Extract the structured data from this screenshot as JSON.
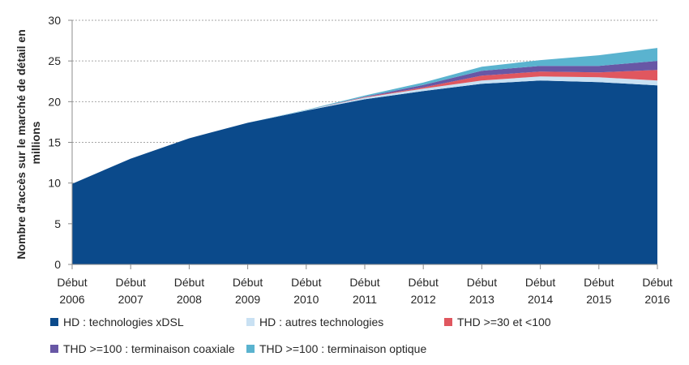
{
  "chart_data": {
    "type": "area",
    "stacked": true,
    "title": "",
    "xlabel": "",
    "ylabel": "Nombre d'accès sur le marché de détail en millions",
    "ylabel_lines": [
      "Nombre d'accès sur le marché de détail en",
      "millions"
    ],
    "ylim": [
      0,
      30
    ],
    "yticks": [
      0,
      5,
      10,
      15,
      20,
      25,
      30
    ],
    "grid": true,
    "categories": [
      "Début 2006",
      "Début 2007",
      "Début 2008",
      "Début 2009",
      "Début 2010",
      "Début 2011",
      "Début 2012",
      "Début 2013",
      "Début 2014",
      "Début 2015",
      "Début 2016"
    ],
    "category_lines": [
      [
        "Début",
        "2006"
      ],
      [
        "Début",
        "2007"
      ],
      [
        "Début",
        "2008"
      ],
      [
        "Début",
        "2009"
      ],
      [
        "Début",
        "2010"
      ],
      [
        "Début",
        "2011"
      ],
      [
        "Début",
        "2012"
      ],
      [
        "Début",
        "2013"
      ],
      [
        "Début",
        "2014"
      ],
      [
        "Début",
        "2015"
      ],
      [
        "Début",
        "2016"
      ]
    ],
    "series": [
      {
        "name": "HD : technologies xDSL",
        "color": "#0B4A8B",
        "values": [
          9.9,
          13.0,
          15.5,
          17.4,
          18.9,
          20.3,
          21.3,
          22.2,
          22.6,
          22.4,
          22.0
        ]
      },
      {
        "name": "HD : autres technologies",
        "color": "#C9E1F3",
        "values": [
          0.0,
          0.0,
          0.0,
          0.0,
          0.05,
          0.2,
          0.3,
          0.4,
          0.5,
          0.6,
          0.6
        ]
      },
      {
        "name": "THD >=30 et <100",
        "color": "#E0575F",
        "values": [
          0.0,
          0.0,
          0.0,
          0.0,
          0.0,
          0.05,
          0.15,
          0.6,
          0.6,
          0.6,
          1.3
        ]
      },
      {
        "name": "THD >=100 : terminaison coaxiale",
        "color": "#6857A5",
        "values": [
          0.0,
          0.0,
          0.0,
          0.0,
          0.0,
          0.05,
          0.3,
          0.6,
          0.7,
          0.8,
          1.1
        ]
      },
      {
        "name": "THD >=100 : terminaison optique",
        "color": "#5AB3CF",
        "values": [
          0.0,
          0.0,
          0.0,
          0.0,
          0.05,
          0.15,
          0.3,
          0.5,
          0.7,
          1.3,
          1.6
        ]
      }
    ],
    "legend_position": "bottom"
  }
}
